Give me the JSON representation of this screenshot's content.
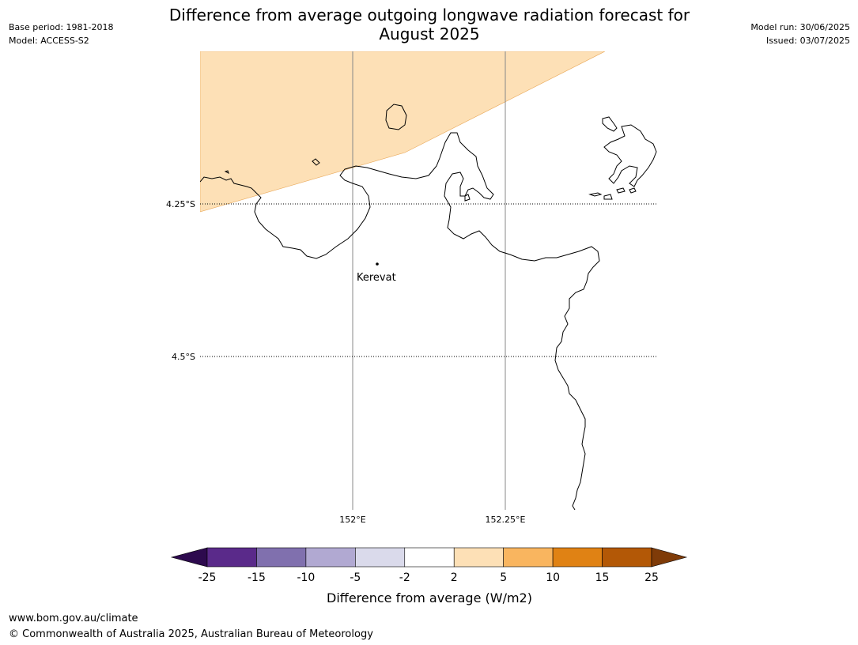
{
  "header": {
    "base_period": "Base period: 1981-2018",
    "model": "Model: ACCESS-S2",
    "title_line1": "Difference from average outgoing longwave radiation forecast for",
    "title_line2": "August 2025",
    "model_run": "Model run: 30/06/2025",
    "issued": "Issued: 03/07/2025"
  },
  "map": {
    "lat_labels": [
      "4.25°S",
      "4.5°S"
    ],
    "lon_labels": [
      "152°E",
      "152.25°E"
    ],
    "place_label": "Kerevat",
    "shaded_category": "2 to 5",
    "shaded_color": "#fde0b6"
  },
  "legend": {
    "title": "Difference from average (W/m2)",
    "ticks": [
      "-25",
      "-15",
      "-10",
      "-5",
      "-2",
      "2",
      "5",
      "10",
      "15",
      "25"
    ],
    "colors": [
      "#2d0a4e",
      "#5a2a8a",
      "#8070ae",
      "#b1a9d2",
      "#dadaeb",
      "#ffffff",
      "#fde0b6",
      "#f9b55f",
      "#e08214",
      "#b35806",
      "#7f3b08"
    ]
  },
  "footer": {
    "url": "www.bom.gov.au/climate",
    "copyright": "© Commonwealth of Australia 2025, Australian Bureau of Meteorology"
  }
}
